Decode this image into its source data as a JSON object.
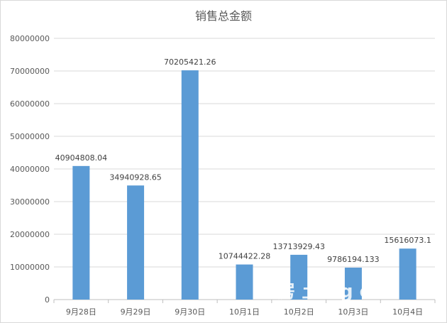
{
  "chart_data": {
    "type": "bar",
    "title": "销售总金额",
    "categories": [
      "9月28日",
      "9月29日",
      "9月30日",
      "10月1日",
      "10月2日",
      "10月3日",
      "10月4日"
    ],
    "values": [
      40904808.04,
      34940928.65,
      70205421.26,
      10744422.28,
      13713929.43,
      9786194.133,
      15616073.1
    ],
    "data_labels": [
      "40904808.04",
      "34940928.65",
      "70205421.26",
      "10744422.28",
      "13713929.43",
      "9786194.133",
      "15616073.1"
    ],
    "y_ticks": [
      "0",
      "10000000",
      "20000000",
      "30000000",
      "40000000",
      "50000000",
      "60000000",
      "70000000",
      "80000000"
    ],
    "ylim": [
      0,
      80000000
    ],
    "grid": true,
    "legend": "none",
    "bar_color": "#5b9bd5",
    "watermark": "房 土 ng om"
  }
}
